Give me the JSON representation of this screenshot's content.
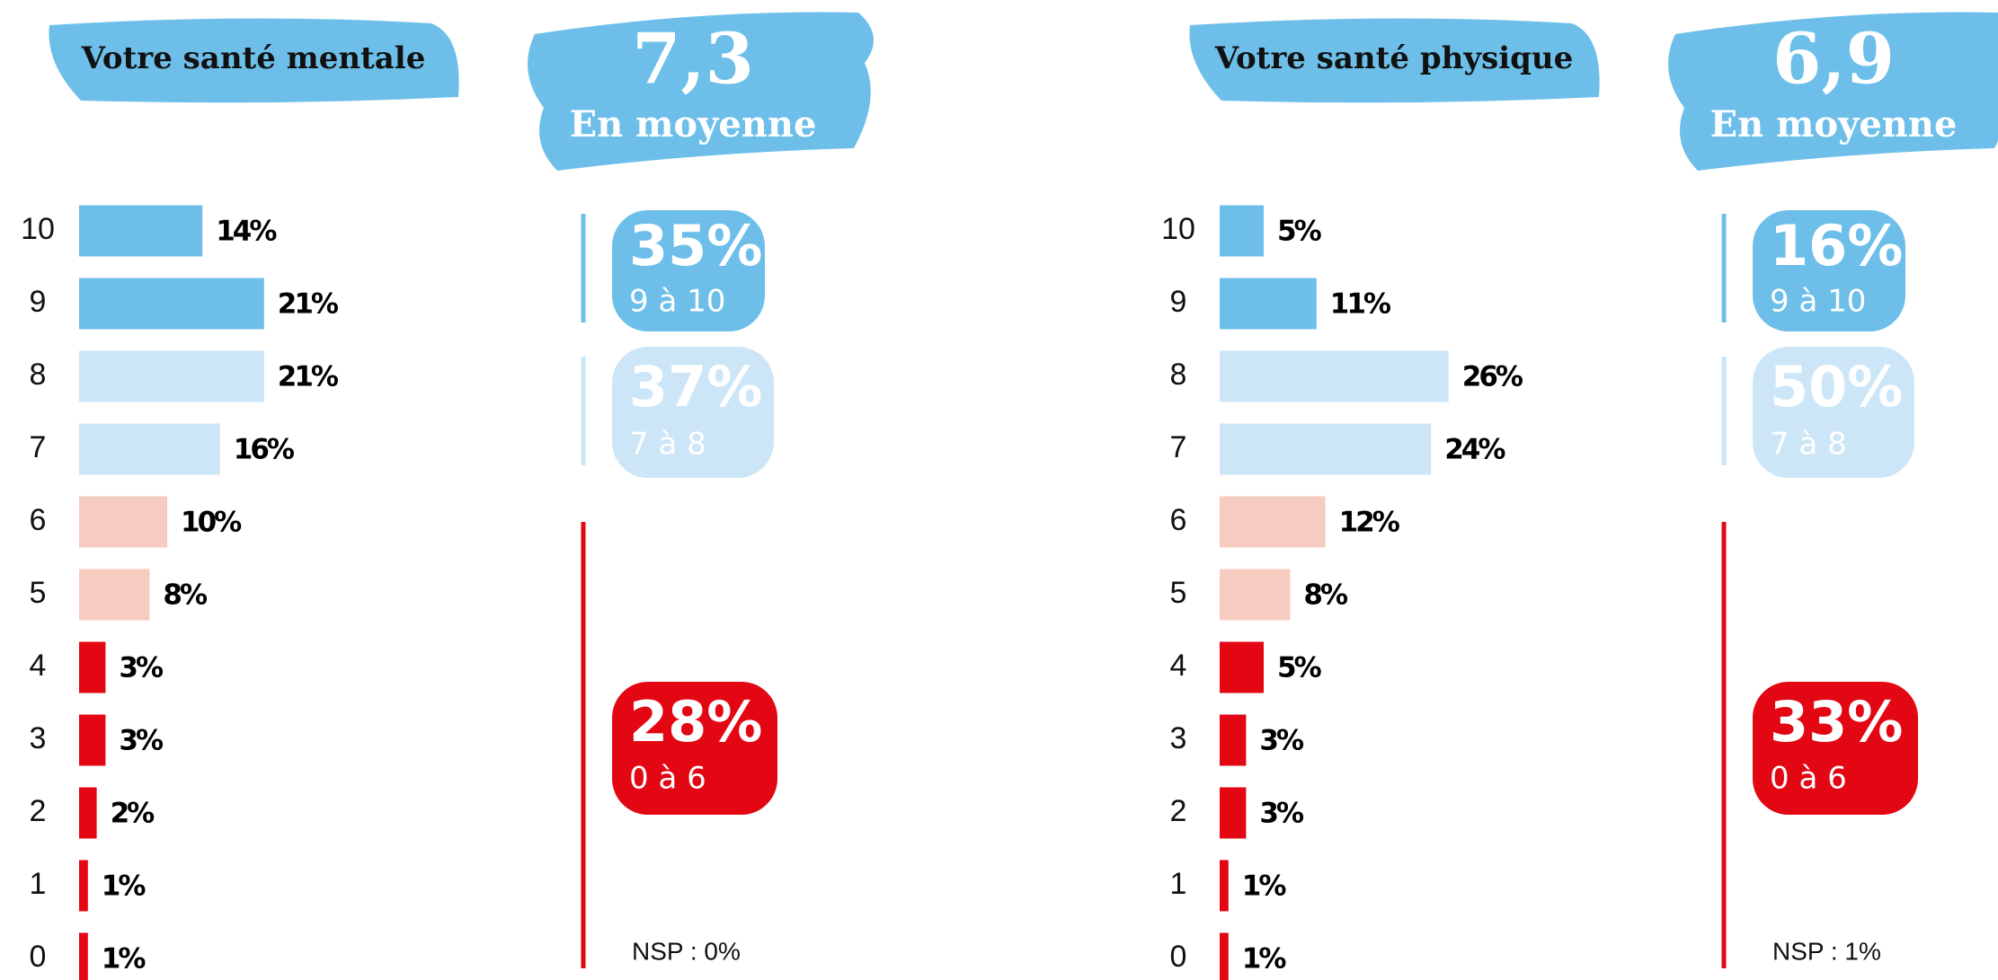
{
  "chart_data": [
    {
      "type": "bar",
      "title": "Votre santé mentale",
      "average": "7,3",
      "average_label": "En moyenne",
      "categories": [
        "10",
        "9",
        "8",
        "7",
        "6",
        "5",
        "4",
        "3",
        "2",
        "1",
        "0"
      ],
      "values": [
        14,
        21,
        21,
        16,
        10,
        8,
        3,
        3,
        2,
        1,
        1
      ],
      "value_labels": [
        "14%",
        "21%",
        "21%",
        "16%",
        "10%",
        "8%",
        "3%",
        "3%",
        "2%",
        "1%",
        "1%"
      ],
      "colors": [
        "#6dbfea",
        "#6dbfea",
        "#cce6f8",
        "#cce6f8",
        "#f6cbc0",
        "#f6cbc0",
        "#e30613",
        "#e30613",
        "#e30613",
        "#e30613",
        "#e30613"
      ],
      "groups": [
        {
          "label": "35%",
          "range": "9 à 10",
          "color": "#6dbfea"
        },
        {
          "label": "37%",
          "range": "7 à 8",
          "color": "#cce6f8"
        },
        {
          "label": "28%",
          "range": "0 à 6",
          "color": "#e30613"
        }
      ],
      "note": "NSP : 0%"
    },
    {
      "type": "bar",
      "title": "Votre santé physique",
      "average": "6,9",
      "average_label": "En moyenne",
      "categories": [
        "10",
        "9",
        "8",
        "7",
        "6",
        "5",
        "4",
        "3",
        "2",
        "1",
        "0"
      ],
      "values": [
        5,
        11,
        26,
        24,
        12,
        8,
        5,
        3,
        3,
        1,
        1
      ],
      "value_labels": [
        "5%",
        "11%",
        "26%",
        "24%",
        "12%",
        "8%",
        "5%",
        "3%",
        "3%",
        "1%",
        "1%"
      ],
      "colors": [
        "#6dbfea",
        "#6dbfea",
        "#cce6f8",
        "#cce6f8",
        "#f6cbc0",
        "#f6cbc0",
        "#e30613",
        "#e30613",
        "#e30613",
        "#e30613",
        "#e30613"
      ],
      "groups": [
        {
          "label": "16%",
          "range": "9 à 10",
          "color": "#6dbfea"
        },
        {
          "label": "50%",
          "range": "7 à 8",
          "color": "#cce6f8"
        },
        {
          "label": "33%",
          "range": "0 à 6",
          "color": "#e30613"
        }
      ],
      "note": "NSP : 1%"
    }
  ]
}
